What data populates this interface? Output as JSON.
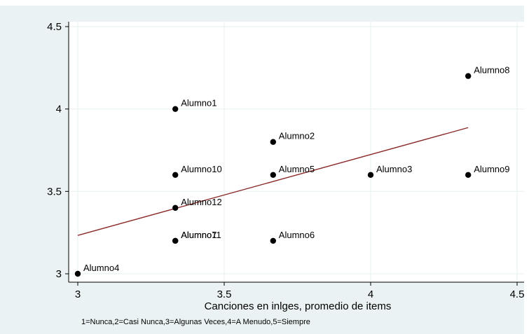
{
  "chart_data": {
    "type": "scatter",
    "xlabel": "Canciones en inlges, promedio de items",
    "note": "1=Nunca,2=Casi Nunca,3=Algunas Veces,4=A Menudo,5=Siempre",
    "xlim": [
      2.98,
      4.52
    ],
    "ylim": [
      2.95,
      4.55
    ],
    "xticks": [
      3,
      3.5,
      4,
      4.5
    ],
    "xtick_labels": [
      "3",
      "3.5",
      "4",
      "4.5"
    ],
    "yticks": [
      3,
      3.5,
      4,
      4.5
    ],
    "ytick_labels": [
      "3",
      "3.5",
      "4",
      "4.5"
    ],
    "grid": true,
    "points": [
      {
        "x": 3.333,
        "y": 4.0,
        "label": "Alumno1"
      },
      {
        "x": 3.667,
        "y": 3.8,
        "label": "Alumno2"
      },
      {
        "x": 4.0,
        "y": 3.6,
        "label": "Alumno3"
      },
      {
        "x": 3.0,
        "y": 3.0,
        "label": "Alumno4"
      },
      {
        "x": 3.667,
        "y": 3.6,
        "label": "Alumno5"
      },
      {
        "x": 3.667,
        "y": 3.2,
        "label": "Alumno6"
      },
      {
        "x": 3.333,
        "y": 3.2,
        "label": "Alumno7"
      },
      {
        "x": 4.333,
        "y": 4.2,
        "label": "Alumno8"
      },
      {
        "x": 4.333,
        "y": 3.6,
        "label": "Alumno9"
      },
      {
        "x": 3.333,
        "y": 3.6,
        "label": "Alumno10"
      },
      {
        "x": 3.333,
        "y": 3.2,
        "label": "Alumno11"
      },
      {
        "x": 3.333,
        "y": 3.4,
        "label": "Alumno12"
      }
    ],
    "fit_line": {
      "x": [
        3.0,
        4.333
      ],
      "y": [
        3.233,
        3.887
      ]
    },
    "colors": {
      "background": "#ffffff",
      "outer_panel": "#eaf2f3",
      "plot_area": "#ffffff",
      "grid": "#eaf2f3",
      "axis": "#000000",
      "marker": "#000000",
      "fit_line": "#8b2a2a"
    }
  }
}
